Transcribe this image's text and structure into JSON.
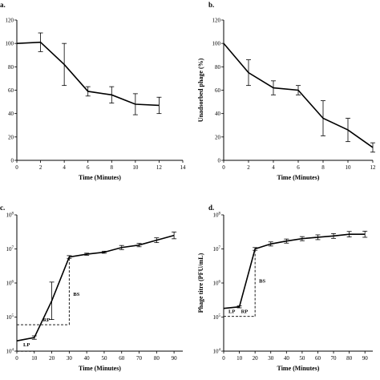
{
  "chart_data": [
    {
      "id": "a",
      "panel_label": "a.",
      "type": "line",
      "title": "",
      "xlabel": "Time (Minutes)",
      "ylabel": "",
      "xlim": [
        0,
        14
      ],
      "ylim": [
        0,
        120
      ],
      "xticks": [
        "0",
        "2",
        "4",
        "6",
        "8",
        "10",
        "12",
        "14"
      ],
      "yticks": [
        "0",
        "20",
        "40",
        "60",
        "80",
        "100",
        "120"
      ],
      "series": [
        {
          "x": [
            0,
            2,
            4,
            6,
            8,
            10,
            12
          ],
          "y": [
            100,
            101,
            82,
            59,
            56,
            48,
            47
          ],
          "yerr": [
            0,
            8,
            18,
            4,
            7,
            9,
            7
          ]
        }
      ]
    },
    {
      "id": "b",
      "panel_label": "b.",
      "type": "line",
      "title": "",
      "xlabel": "Time (Minutes)",
      "ylabel": "Unadsorbed phage (%)",
      "xlim": [
        0,
        12
      ],
      "ylim": [
        0,
        120
      ],
      "xticks": [
        "0",
        "2",
        "4",
        "6",
        "8",
        "10",
        "12"
      ],
      "yticks": [
        "0",
        "20",
        "40",
        "60",
        "80",
        "100",
        "120"
      ],
      "series": [
        {
          "x": [
            0,
            2,
            4,
            6,
            8,
            10,
            12
          ],
          "y": [
            100,
            75,
            62,
            60,
            36,
            26,
            11
          ],
          "yerr": [
            0,
            11,
            6,
            4,
            15,
            10,
            4
          ]
        }
      ]
    },
    {
      "id": "c",
      "panel_label": "c.",
      "type": "line",
      "title": "",
      "xlabel": "Time (Minutes)",
      "ylabel": "",
      "scale_y": "log",
      "xlim": [
        0,
        95
      ],
      "ylim": [
        4,
        8
      ],
      "xticks": [
        "0",
        "10",
        "20",
        "30",
        "40",
        "50",
        "60",
        "70",
        "80",
        "90"
      ],
      "yticks": [
        "10^4",
        "10^5",
        "10^6",
        "10^7",
        "10^8"
      ],
      "series": [
        {
          "x": [
            0,
            10,
            20,
            30,
            40,
            50,
            60,
            70,
            80,
            90
          ],
          "y": [
            20000,
            25000,
            300000,
            5800000,
            7000000,
            8000000,
            11000000,
            13000000,
            18000000,
            25000000
          ],
          "yerr_log": [
            0,
            0.05,
            0.55,
            0.04,
            0.03,
            0.03,
            0.06,
            0.05,
            0.07,
            0.1
          ]
        }
      ],
      "annotations": [
        "LP",
        "RP",
        "BS"
      ]
    },
    {
      "id": "d",
      "panel_label": "d.",
      "type": "line",
      "title": "",
      "xlabel": "Time (Minutes)",
      "ylabel": "Phage titre (PFU/mL)",
      "scale_y": "log",
      "xlim": [
        0,
        95
      ],
      "ylim": [
        4,
        8
      ],
      "xticks": [
        "0",
        "10",
        "20",
        "30",
        "40",
        "50",
        "60",
        "70",
        "80",
        "90"
      ],
      "yticks": [
        "10^4",
        "10^5",
        "10^6",
        "10^7",
        "10^8"
      ],
      "series": [
        {
          "x": [
            0,
            10,
            20,
            30,
            40,
            50,
            60,
            70,
            80,
            90
          ],
          "y": [
            180000,
            200000,
            10000000,
            14000000,
            17000000,
            20000000,
            22000000,
            24000000,
            27000000,
            27000000
          ],
          "yerr_log": [
            0,
            0.03,
            0.04,
            0.06,
            0.06,
            0.06,
            0.07,
            0.07,
            0.08,
            0.09
          ]
        }
      ],
      "annotations": [
        "LP",
        "RP",
        "BS"
      ]
    }
  ]
}
